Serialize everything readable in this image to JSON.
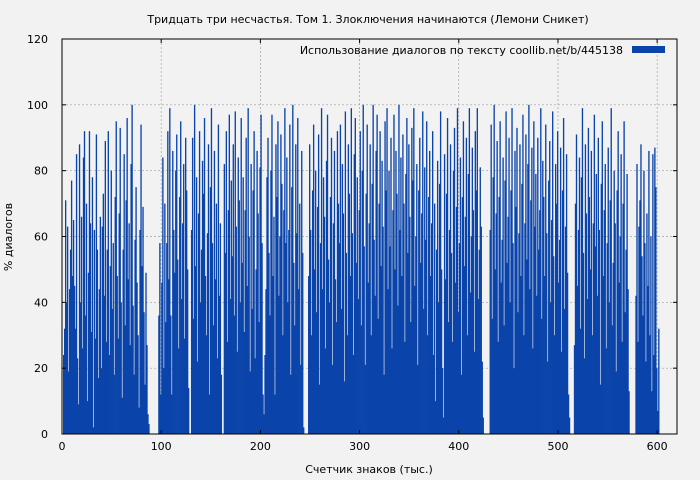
{
  "colors": {
    "background": "#f2f2f2",
    "bar": "#0a44aa",
    "grid": "#a0a0a0",
    "axis": "#000000"
  },
  "chart_data": {
    "type": "bar",
    "title": "Тридцать три несчастья. Том 1. Злоключения начинаются (Лемони Сникет)",
    "xlabel": "Счетчик знаков (тыс.)",
    "ylabel": "% диалогов",
    "xlim": [
      0,
      620
    ],
    "ylim": [
      0,
      120
    ],
    "x_ticks": [
      0,
      100,
      200,
      300,
      400,
      500,
      600
    ],
    "y_ticks": [
      0,
      20,
      40,
      60,
      80,
      100,
      120
    ],
    "grid": true,
    "legend_position": "top-right",
    "series": [
      {
        "name": "Использование диалогов по тексту  coollib.net/b/445138",
        "color": "#0a44aa",
        "x_step": 1,
        "values": [
          24,
          32,
          71,
          40,
          63,
          19,
          44,
          56,
          77,
          48,
          65,
          45,
          32,
          85,
          23,
          9,
          88,
          40,
          66,
          26,
          84,
          92,
          36,
          70,
          10,
          49,
          92,
          64,
          31,
          78,
          2,
          62,
          29,
          91,
          56,
          17,
          44,
          66,
          20,
          63,
          73,
          42,
          89,
          28,
          56,
          92,
          24,
          51,
          80,
          38,
          58,
          18,
          72,
          95,
          48,
          29,
          67,
          93,
          40,
          11,
          56,
          85,
          33,
          71,
          96,
          47,
          64,
          27,
          82,
          100,
          39,
          18,
          59,
          75,
          46,
          30,
          8,
          62,
          94,
          51,
          69,
          37,
          15,
          49,
          27,
          6,
          3,
          0,
          0,
          0,
          0,
          0,
          0,
          0,
          0,
          0,
          36,
          58,
          12,
          46,
          84,
          20,
          70,
          34,
          58,
          92,
          47,
          99,
          36,
          12,
          86,
          62,
          49,
          80,
          91,
          53,
          26,
          72,
          95,
          41,
          64,
          82,
          29,
          90,
          74,
          50,
          14,
          0,
          0,
          62,
          90,
          35,
          100,
          51,
          78,
          22,
          67,
          92,
          40,
          56,
          83,
          73,
          96,
          48,
          30,
          61,
          88,
          12,
          75,
          99,
          58,
          33,
          86,
          47,
          70,
          23,
          94,
          42,
          64,
          18,
          0,
          0,
          82,
          55,
          92,
          28,
          68,
          97,
          41,
          77,
          54,
          88,
          36,
          98,
          63,
          25,
          84,
          71,
          40,
          96,
          52,
          78,
          31,
          68,
          90,
          45,
          99,
          60,
          19,
          82,
          38,
          74,
          92,
          23,
          50,
          86,
          67,
          34,
          81,
          97,
          58,
          12,
          6,
          24,
          44,
          78,
          90,
          55,
          36,
          80,
          97,
          48,
          66,
          12,
          88,
          72,
          95,
          42,
          60,
          91,
          76,
          30,
          68,
          99,
          58,
          84,
          40,
          62,
          94,
          18,
          75,
          100,
          52,
          33,
          88,
          61,
          96,
          44,
          70,
          21,
          86,
          55,
          2,
          0,
          0,
          0,
          0,
          48,
          88,
          62,
          30,
          74,
          94,
          50,
          80,
          37,
          69,
          91,
          15,
          58,
          99,
          44,
          78,
          66,
          26,
          83,
          97,
          53,
          40,
          72,
          90,
          21,
          64,
          86,
          47,
          34,
          92,
          70,
          58,
          94,
          38,
          82,
          67,
          16,
          98,
          55,
          30,
          88,
          73,
          48,
          99,
          61,
          24,
          85,
          96,
          52,
          78,
          41,
          68,
          92,
          33,
          80,
          100,
          57,
          21,
          73,
          94,
          46,
          64,
          88,
          30,
          76,
          100,
          59,
          42,
          86,
          97,
          35,
          70,
          92,
          51,
          83,
          63,
          18,
          95,
          74,
          99,
          44,
          80,
          57,
          90,
          26,
          68,
          97,
          50,
          86,
          73,
          39,
          100,
          62,
          84,
          48,
          91,
          70,
          28,
          79,
          96,
          55,
          88,
          66,
          34,
          93,
          77,
          99,
          45,
          60,
          82,
          21,
          74,
          90,
          52,
          67,
          98,
          38,
          81,
          59,
          95,
          30,
          72,
          86,
          48,
          64,
          92,
          24,
          70,
          10,
          56,
          83,
          40,
          76,
          98,
          50,
          20,
          5,
          85,
          47,
          73,
          96,
          34,
          62,
          88,
          55,
          28,
          80,
          93,
          46,
          69,
          99,
          37,
          58,
          84,
          18,
          72,
          95,
          51,
          66,
          90,
          30,
          79,
          99,
          43,
          60,
          87,
          68,
          25,
          92,
          74,
          99,
          41,
          56,
          81,
          63,
          22,
          5,
          0,
          0,
          0,
          0,
          0,
          0,
          62,
          94,
          35,
          78,
          100,
          50,
          67,
          89,
          28,
          72,
          95,
          46,
          59,
          84,
          33,
          77,
          98,
          52,
          66,
          90,
          40,
          74,
          99,
          58,
          20,
          86,
          69,
          93,
          37,
          61,
          88,
          48,
          76,
          97,
          30,
          64,
          91,
          53,
          82,
          100,
          44,
          71,
          87,
          26,
          95,
          63,
          79,
          42,
          90,
          56,
          68,
          99,
          35,
          83,
          72,
          48,
          94,
          61,
          22,
          77,
          89,
          40,
          65,
          98,
          54,
          30,
          82,
          70,
          92,
          46,
          59,
          87,
          25,
          74,
          96,
          38,
          63,
          85,
          49,
          12,
          5,
          0,
          0,
          0,
          0,
          27,
          70,
          91,
          45,
          62,
          84,
          32,
          78,
          99,
          55,
          23,
          88,
          67,
          41,
          93,
          72,
          50,
          86,
          30,
          64,
          97,
          57,
          79,
          42,
          90,
          62,
          15,
          76,
          95,
          48,
          68,
          82,
          26,
          58,
          87,
          40,
          71,
          99,
          33,
          52,
          80,
          64,
          19,
          74,
          92,
          46,
          60,
          85,
          28,
          70,
          95,
          37,
          56,
          79,
          44,
          13,
          0,
          0,
          0,
          0,
          0,
          0,
          42,
          82,
          28,
          63,
          71,
          88,
          54,
          36,
          80,
          58,
          22,
          67,
          45,
          86,
          30,
          60,
          13,
          85,
          24,
          87,
          75,
          20,
          7,
          32,
          0,
          0,
          0
        ]
      }
    ]
  }
}
